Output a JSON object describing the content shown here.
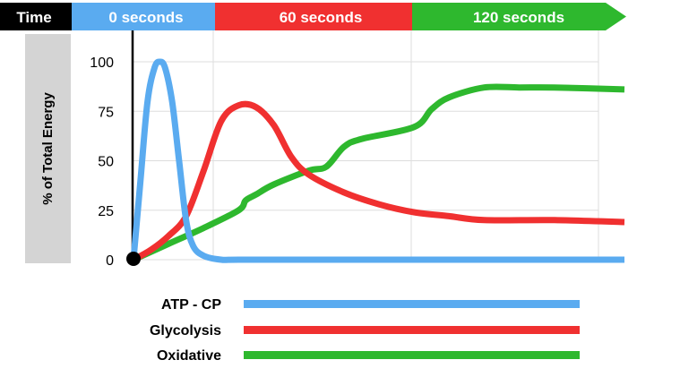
{
  "chart_data": {
    "type": "line",
    "ylabel": "% of Total Energy",
    "ylim": [
      0,
      100
    ],
    "y_ticks": [
      {
        "value": 0,
        "label": "0"
      },
      {
        "value": 25,
        "label": "25"
      },
      {
        "value": 50,
        "label": "50"
      },
      {
        "value": 75,
        "label": "75"
      },
      {
        "value": 100,
        "label": "100"
      }
    ],
    "xlim": [
      0,
      140
    ],
    "grid": true,
    "legend_position": "bottom",
    "timeline": {
      "label": "Time",
      "segments": [
        {
          "label": "0 seconds",
          "color": "#5aabf0"
        },
        {
          "label": "60 seconds",
          "color": "#f03030"
        },
        {
          "label": "120 seconds",
          "color": "#2eb82e"
        }
      ]
    },
    "series": [
      {
        "name": "ATP - CP",
        "color": "#5aabf0",
        "x": [
          0,
          2,
          4,
          6,
          7.5,
          9,
          11,
          13,
          15,
          17,
          20,
          25,
          30,
          60,
          90,
          120,
          140
        ],
        "values": [
          0,
          40,
          80,
          97,
          100,
          97,
          80,
          50,
          20,
          7,
          2,
          0,
          0,
          0,
          0,
          0,
          0
        ]
      },
      {
        "name": "Glycolysis",
        "color": "#f03030",
        "x": [
          0,
          5,
          10,
          15,
          20,
          25,
          30,
          35,
          40,
          45,
          50,
          60,
          70,
          80,
          90,
          100,
          120,
          140
        ],
        "values": [
          0,
          5,
          12,
          22,
          45,
          70,
          78,
          77,
          68,
          52,
          43,
          34,
          28,
          24,
          22,
          20,
          20,
          19
        ]
      },
      {
        "name": "Oxidative",
        "color": "#2eb82e",
        "x": [
          0,
          10,
          20,
          30,
          32,
          35,
          40,
          50,
          55,
          60,
          65,
          80,
          85,
          90,
          100,
          110,
          120,
          140
        ],
        "values": [
          0,
          8,
          16,
          25,
          30,
          33,
          38,
          45,
          47,
          57,
          61,
          67,
          76,
          82,
          87,
          87,
          87,
          86
        ]
      }
    ]
  }
}
